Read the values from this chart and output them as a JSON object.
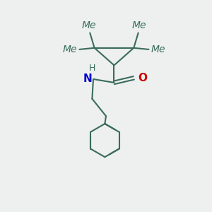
{
  "background_color": "#edf0ee",
  "bond_color": "#3a6b5e",
  "n_color": "#0000cc",
  "o_color": "#cc0000",
  "line_width": 1.5,
  "font_size_atom": 11,
  "font_size_h": 9,
  "figsize": [
    3.0,
    3.0
  ],
  "dpi": 100,
  "xlim": [
    0.15,
    0.85
  ],
  "ylim": [
    0.05,
    0.95
  ]
}
